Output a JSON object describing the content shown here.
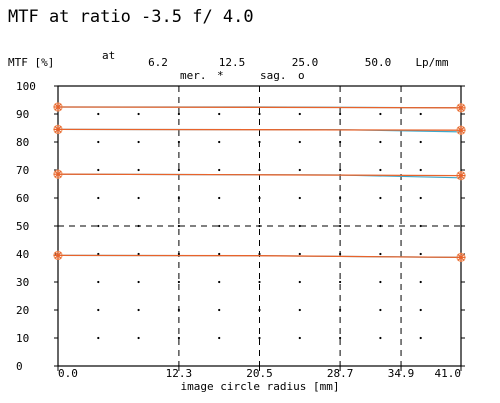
{
  "chart_data": {
    "type": "line",
    "title": "MTF at ratio -3.5  f/ 4.0",
    "ylabel": "MTF [%]",
    "xlabel": "image circle radius [mm]",
    "freq_prefix": "at",
    "freq_labels": [
      "6.2",
      "12.5",
      "25.0",
      "50.0",
      "Lp/mm"
    ],
    "legend": [
      {
        "label": "mer.",
        "marker": "*"
      },
      {
        "label": "sag.",
        "marker": "o"
      }
    ],
    "x_ticks": [
      "0.0",
      "12.3",
      "20.5",
      "28.7",
      "34.9",
      "41.0"
    ],
    "x_tick_values": [
      0.0,
      12.3,
      20.5,
      28.7,
      34.9,
      41.0
    ],
    "y_ticks": [
      "0",
      "10",
      "20",
      "30",
      "40",
      "50",
      "60",
      "70",
      "80",
      "90",
      "100"
    ],
    "xlim": [
      0.0,
      41.0
    ],
    "ylim": [
      0,
      100
    ],
    "dashed_lines": {
      "x": [
        12.3,
        20.5,
        28.7,
        34.9
      ],
      "y": [
        50
      ]
    },
    "colors": {
      "mer": "#e8632b",
      "sag": "#3fa7c9",
      "frame": "#000000",
      "marker": "#f0a070"
    },
    "series": [
      {
        "frequency": "6.2",
        "mer": [
          [
            0,
            92.5
          ],
          [
            20.5,
            92.4
          ],
          [
            41,
            92.2
          ]
        ],
        "sag": [
          [
            0,
            92.5
          ],
          [
            20.5,
            92.5
          ],
          [
            41,
            92.2
          ]
        ]
      },
      {
        "frequency": "12.5",
        "mer": [
          [
            0,
            84.5
          ],
          [
            20.5,
            84.4
          ],
          [
            41,
            84.2
          ]
        ],
        "sag": [
          [
            0,
            84.5
          ],
          [
            28.7,
            84.4
          ],
          [
            41,
            83.6
          ]
        ]
      },
      {
        "frequency": "25.0",
        "mer": [
          [
            0,
            68.5
          ],
          [
            20.5,
            68.3
          ],
          [
            41,
            68.0
          ]
        ],
        "sag": [
          [
            0,
            68.5
          ],
          [
            28.7,
            68.2
          ],
          [
            41,
            67.2
          ]
        ]
      },
      {
        "frequency": "50.0",
        "mer": [
          [
            0,
            39.5
          ],
          [
            20.5,
            39.4
          ],
          [
            41,
            38.8
          ]
        ],
        "sag": [
          [
            0,
            39.5
          ],
          [
            20.5,
            39.4
          ],
          [
            41,
            38.8
          ]
        ]
      }
    ]
  }
}
